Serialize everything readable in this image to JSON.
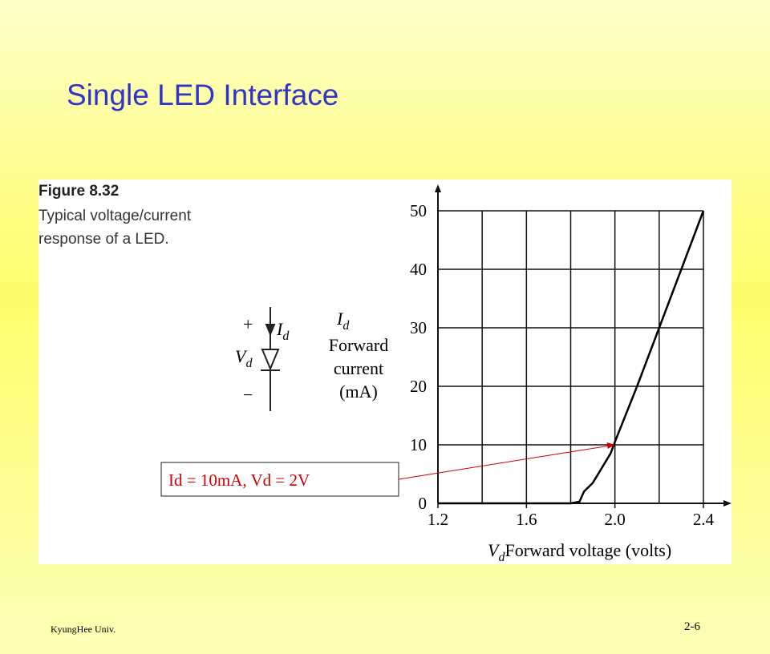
{
  "slide": {
    "title": "Single LED Interface",
    "footer_left": "KyungHee Univ.",
    "footer_right": "2-6"
  },
  "figure": {
    "number": "Figure 8.32",
    "caption": [
      "Typical voltage/current",
      "response of a LED."
    ],
    "symbol": {
      "plus": "+",
      "minus": "−",
      "current": "I",
      "current_sub": "d",
      "voltage": "V",
      "voltage_sub": "d"
    }
  },
  "chart_data": {
    "type": "line",
    "x": [
      1.2,
      1.8,
      1.84,
      1.86,
      1.9,
      1.94,
      1.98,
      2.0,
      2.1,
      2.2,
      2.3,
      2.4
    ],
    "values": [
      0,
      0,
      0.3,
      2,
      3.5,
      6,
      8.5,
      10.5,
      20,
      30,
      40,
      50
    ],
    "color": "#000000",
    "xlim": [
      1.2,
      2.4
    ],
    "ylim": [
      0,
      50
    ],
    "xticks": [
      1.2,
      1.6,
      {
        "value": 2,
        "label": "2.0"
      },
      2.4
    ],
    "yticks": [
      0,
      10,
      20,
      30,
      40,
      50
    ],
    "xgrid": [
      1.4,
      1.6,
      1.8,
      2,
      2.2,
      2.4
    ],
    "grid": true,
    "y_label": {
      "main": "I",
      "sub": "d",
      "lines": [
        "Forward",
        "current",
        "(mA)"
      ]
    },
    "x_label": {
      "main": "V",
      "sub": "d",
      "text": "Forward voltage (volts)"
    },
    "annotation": {
      "text": "Id = 10mA, Vd = 2V",
      "x": 2,
      "y": 10,
      "color": "#cc0000"
    }
  }
}
